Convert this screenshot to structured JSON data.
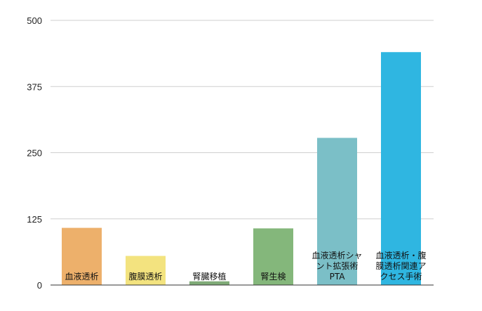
{
  "chart_data": {
    "type": "bar",
    "title": "",
    "xlabel": "",
    "ylabel": "",
    "ylim": [
      0,
      500
    ],
    "yticks": [
      0,
      125,
      250,
      375,
      500
    ],
    "grid": true,
    "categories": [
      "血液透析",
      "腹膜透析",
      "腎臓移植",
      "腎生検",
      "血液透析シャント拡張術PTA",
      "血液透析・腹膜透析関連アクセス手術"
    ],
    "category_lines": [
      [
        "血液透析"
      ],
      [
        "腹膜透析"
      ],
      [
        "腎臓移植"
      ],
      [
        "腎生検"
      ],
      [
        "血液透析シャ",
        "ント拡張術",
        "PTA"
      ],
      [
        "血液透析・腹",
        "膜透析関連ア",
        "クセス手術"
      ]
    ],
    "values": [
      108,
      55,
      7,
      107,
      278,
      440
    ],
    "colors": [
      "#edb06b",
      "#f3e37f",
      "#7faa77",
      "#84b77b",
      "#7bbfc7",
      "#2fb6e1"
    ]
  }
}
